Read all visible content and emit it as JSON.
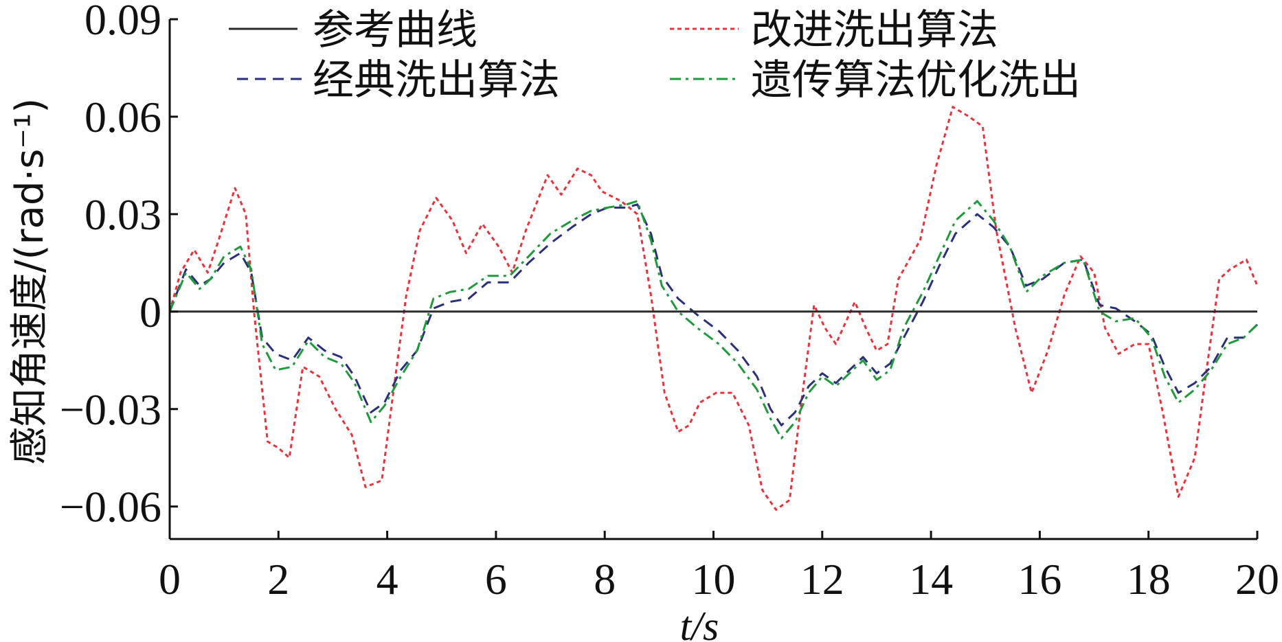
{
  "chart_data": {
    "type": "line",
    "xlabel": "t/s",
    "ylabel": "感知角速度/(rad·s⁻¹)",
    "xlim": [
      0,
      20
    ],
    "ylim": [
      -0.07,
      0.09
    ],
    "xticks": [
      0,
      2,
      4,
      6,
      8,
      10,
      12,
      14,
      16,
      18,
      20
    ],
    "xtick_labels": [
      "0",
      "2",
      "4",
      "6",
      "8",
      "10",
      "12",
      "14",
      "16",
      "18",
      "20"
    ],
    "yticks": [
      0.09,
      0.06,
      0.03,
      0,
      -0.03,
      -0.06
    ],
    "ytick_labels": [
      "0.09",
      "0.06",
      "0.03",
      "0",
      "−0.03",
      "−0.06"
    ],
    "grid": false,
    "legend_position": "top",
    "series": [
      {
        "name": "参考曲线",
        "color": "#2b2b2b",
        "style": "solid",
        "points": [
          [
            0,
            0
          ],
          [
            20,
            0
          ]
        ]
      },
      {
        "name": "改进洗出算法",
        "color": "#e8323c",
        "style": "dotted",
        "points": [
          [
            0,
            0
          ],
          [
            0.2,
            0.012
          ],
          [
            0.45,
            0.019
          ],
          [
            0.7,
            0.012
          ],
          [
            0.9,
            0.022
          ],
          [
            1.2,
            0.038
          ],
          [
            1.4,
            0.03
          ],
          [
            1.55,
            0
          ],
          [
            1.8,
            -0.04
          ],
          [
            2.0,
            -0.042
          ],
          [
            2.2,
            -0.045
          ],
          [
            2.45,
            -0.017
          ],
          [
            2.75,
            -0.02
          ],
          [
            3.05,
            -0.03
          ],
          [
            3.35,
            -0.038
          ],
          [
            3.6,
            -0.054
          ],
          [
            3.9,
            -0.052
          ],
          [
            4.15,
            -0.02
          ],
          [
            4.35,
            0.005
          ],
          [
            4.6,
            0.025
          ],
          [
            4.9,
            0.035
          ],
          [
            5.2,
            0.028
          ],
          [
            5.45,
            0.018
          ],
          [
            5.75,
            0.027
          ],
          [
            6.05,
            0.02
          ],
          [
            6.3,
            0.012
          ],
          [
            6.55,
            0.025
          ],
          [
            6.95,
            0.042
          ],
          [
            7.2,
            0.036
          ],
          [
            7.5,
            0.044
          ],
          [
            7.75,
            0.042
          ],
          [
            7.95,
            0.037
          ],
          [
            8.3,
            0.034
          ],
          [
            8.6,
            0.03
          ],
          [
            8.85,
            0.005
          ],
          [
            9.1,
            -0.025
          ],
          [
            9.35,
            -0.037
          ],
          [
            9.55,
            -0.035
          ],
          [
            9.75,
            -0.028
          ],
          [
            10.05,
            -0.025
          ],
          [
            10.35,
            -0.025
          ],
          [
            10.65,
            -0.035
          ],
          [
            10.9,
            -0.055
          ],
          [
            11.15,
            -0.061
          ],
          [
            11.4,
            -0.058
          ],
          [
            11.6,
            -0.03
          ],
          [
            11.85,
            0.002
          ],
          [
            12.05,
            -0.005
          ],
          [
            12.25,
            -0.01
          ],
          [
            12.6,
            0.003
          ],
          [
            12.8,
            -0.005
          ],
          [
            13.0,
            -0.012
          ],
          [
            13.2,
            -0.01
          ],
          [
            13.4,
            0.01
          ],
          [
            13.8,
            0.022
          ],
          [
            14.1,
            0.045
          ],
          [
            14.4,
            0.063
          ],
          [
            14.7,
            0.06
          ],
          [
            14.95,
            0.057
          ],
          [
            15.2,
            0.025
          ],
          [
            15.55,
            -0.005
          ],
          [
            15.85,
            -0.025
          ],
          [
            16.15,
            -0.012
          ],
          [
            16.45,
            0.005
          ],
          [
            16.75,
            0.017
          ],
          [
            17.0,
            0.012
          ],
          [
            17.2,
            -0.005
          ],
          [
            17.45,
            -0.013
          ],
          [
            17.75,
            -0.01
          ],
          [
            18.0,
            -0.01
          ],
          [
            18.25,
            -0.03
          ],
          [
            18.55,
            -0.057
          ],
          [
            18.85,
            -0.045
          ],
          [
            19.05,
            -0.02
          ],
          [
            19.3,
            0.01
          ],
          [
            19.5,
            0.013
          ],
          [
            19.8,
            0.016
          ],
          [
            20,
            0.008
          ]
        ]
      },
      {
        "name": "经典洗出算法",
        "color": "#2a2f7a",
        "style": "dashed",
        "points": [
          [
            0,
            0
          ],
          [
            0.3,
            0.013
          ],
          [
            0.55,
            0.008
          ],
          [
            0.75,
            0.01
          ],
          [
            1.0,
            0.015
          ],
          [
            1.3,
            0.018
          ],
          [
            1.5,
            0.012
          ],
          [
            1.7,
            -0.008
          ],
          [
            1.95,
            -0.013
          ],
          [
            2.25,
            -0.015
          ],
          [
            2.55,
            -0.008
          ],
          [
            2.85,
            -0.012
          ],
          [
            3.15,
            -0.014
          ],
          [
            3.4,
            -0.02
          ],
          [
            3.7,
            -0.031
          ],
          [
            3.95,
            -0.028
          ],
          [
            4.25,
            -0.018
          ],
          [
            4.55,
            -0.012
          ],
          [
            4.85,
            0.001
          ],
          [
            5.15,
            0.003
          ],
          [
            5.5,
            0.004
          ],
          [
            5.85,
            0.009
          ],
          [
            6.25,
            0.009
          ],
          [
            6.6,
            0.015
          ],
          [
            7.0,
            0.021
          ],
          [
            7.4,
            0.026
          ],
          [
            7.75,
            0.03
          ],
          [
            8.05,
            0.032
          ],
          [
            8.4,
            0.032
          ],
          [
            8.6,
            0.033
          ],
          [
            8.85,
            0.024
          ],
          [
            9.05,
            0.011
          ],
          [
            9.35,
            0.004
          ],
          [
            9.7,
            -0.001
          ],
          [
            10.1,
            -0.006
          ],
          [
            10.45,
            -0.012
          ],
          [
            10.8,
            -0.02
          ],
          [
            11.05,
            -0.03
          ],
          [
            11.25,
            -0.035
          ],
          [
            11.5,
            -0.031
          ],
          [
            11.75,
            -0.023
          ],
          [
            12.0,
            -0.019
          ],
          [
            12.25,
            -0.022
          ],
          [
            12.5,
            -0.018
          ],
          [
            12.75,
            -0.014
          ],
          [
            13.0,
            -0.019
          ],
          [
            13.25,
            -0.016
          ],
          [
            13.5,
            -0.008
          ],
          [
            13.85,
            0.003
          ],
          [
            14.15,
            0.014
          ],
          [
            14.45,
            0.024
          ],
          [
            14.85,
            0.03
          ],
          [
            15.15,
            0.026
          ],
          [
            15.45,
            0.02
          ],
          [
            15.75,
            0.008
          ],
          [
            16.05,
            0.01
          ],
          [
            16.45,
            0.015
          ],
          [
            16.8,
            0.016
          ],
          [
            17.1,
            0.002
          ],
          [
            17.4,
            0.001
          ],
          [
            17.75,
            -0.003
          ],
          [
            18.05,
            -0.007
          ],
          [
            18.3,
            -0.017
          ],
          [
            18.55,
            -0.025
          ],
          [
            18.85,
            -0.022
          ],
          [
            19.15,
            -0.017
          ],
          [
            19.45,
            -0.008
          ],
          [
            19.75,
            -0.008
          ],
          [
            20,
            -0.004
          ]
        ]
      },
      {
        "name": "遗传算法优化洗出",
        "color": "#1f9a3a",
        "style": "dashdot",
        "points": [
          [
            0,
            0
          ],
          [
            0.3,
            0.012
          ],
          [
            0.55,
            0.007
          ],
          [
            0.75,
            0.01
          ],
          [
            1.0,
            0.017
          ],
          [
            1.3,
            0.02
          ],
          [
            1.5,
            0.013
          ],
          [
            1.7,
            -0.01
          ],
          [
            1.95,
            -0.018
          ],
          [
            2.25,
            -0.017
          ],
          [
            2.55,
            -0.009
          ],
          [
            2.85,
            -0.014
          ],
          [
            3.15,
            -0.016
          ],
          [
            3.4,
            -0.022
          ],
          [
            3.7,
            -0.034
          ],
          [
            3.95,
            -0.029
          ],
          [
            4.25,
            -0.02
          ],
          [
            4.55,
            -0.012
          ],
          [
            4.85,
            0.004
          ],
          [
            5.15,
            0.006
          ],
          [
            5.5,
            0.007
          ],
          [
            5.85,
            0.011
          ],
          [
            6.25,
            0.011
          ],
          [
            6.6,
            0.017
          ],
          [
            7.0,
            0.024
          ],
          [
            7.4,
            0.028
          ],
          [
            7.75,
            0.031
          ],
          [
            8.05,
            0.032
          ],
          [
            8.4,
            0.033
          ],
          [
            8.6,
            0.034
          ],
          [
            8.85,
            0.022
          ],
          [
            9.05,
            0.008
          ],
          [
            9.35,
            0
          ],
          [
            9.7,
            -0.005
          ],
          [
            10.1,
            -0.01
          ],
          [
            10.45,
            -0.016
          ],
          [
            10.8,
            -0.024
          ],
          [
            11.05,
            -0.033
          ],
          [
            11.25,
            -0.039
          ],
          [
            11.5,
            -0.034
          ],
          [
            11.75,
            -0.025
          ],
          [
            12.0,
            -0.02
          ],
          [
            12.25,
            -0.023
          ],
          [
            12.5,
            -0.019
          ],
          [
            12.75,
            -0.015
          ],
          [
            13.0,
            -0.021
          ],
          [
            13.25,
            -0.018
          ],
          [
            13.5,
            -0.005
          ],
          [
            13.85,
            0.006
          ],
          [
            14.15,
            0.017
          ],
          [
            14.45,
            0.028
          ],
          [
            14.85,
            0.034
          ],
          [
            15.15,
            0.028
          ],
          [
            15.45,
            0.02
          ],
          [
            15.75,
            0.006
          ],
          [
            16.05,
            0.011
          ],
          [
            16.45,
            0.015
          ],
          [
            16.8,
            0.016
          ],
          [
            17.1,
            0
          ],
          [
            17.4,
            -0.003
          ],
          [
            17.75,
            -0.002
          ],
          [
            18.05,
            -0.008
          ],
          [
            18.3,
            -0.02
          ],
          [
            18.55,
            -0.028
          ],
          [
            18.85,
            -0.024
          ],
          [
            19.15,
            -0.018
          ],
          [
            19.45,
            -0.01
          ],
          [
            19.75,
            -0.008
          ],
          [
            20,
            -0.004
          ]
        ]
      }
    ]
  }
}
